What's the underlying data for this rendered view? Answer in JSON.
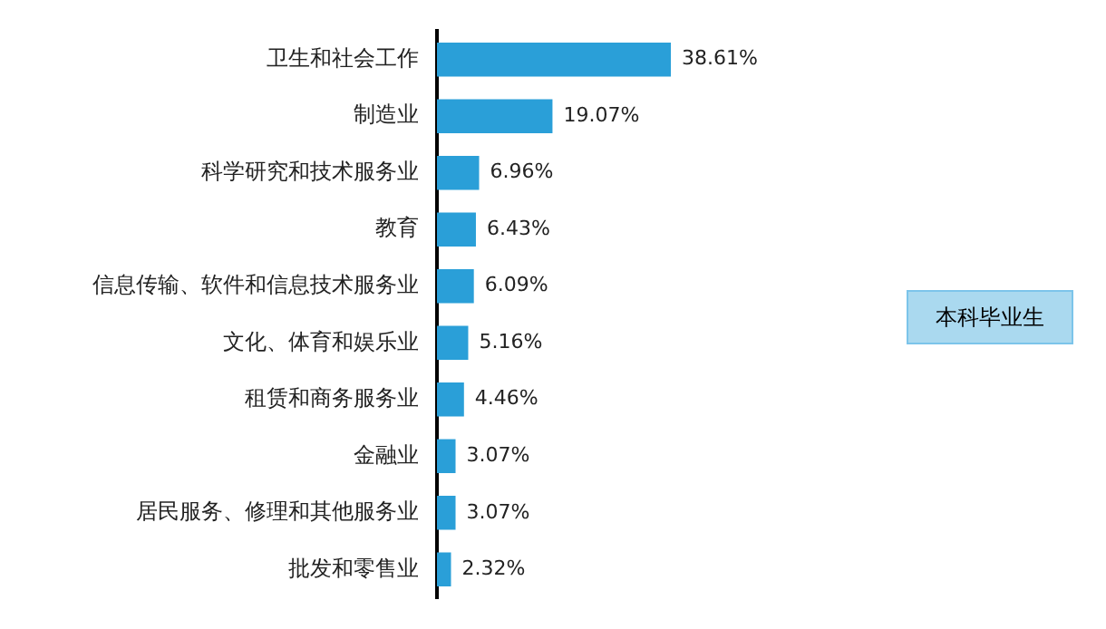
{
  "chart_data": {
    "type": "bar",
    "orientation": "horizontal",
    "legend": "right",
    "categories": [
      "卫生和社会工作",
      "制造业",
      "科学研究和技术服务业",
      "教育",
      "信息传输、软件和信息技术服务业",
      "文化、体育和娱乐业",
      "租赁和商务服务业",
      "金融业",
      "居民服务、修理和其他服务业",
      "批发和零售业"
    ],
    "series": [
      {
        "name": "本科毕业生",
        "color": "#2a9fd8",
        "values": [
          38.61,
          19.07,
          6.96,
          6.43,
          6.09,
          5.16,
          4.46,
          3.07,
          3.07,
          2.32
        ],
        "value_labels": [
          "38.61%",
          "19.07%",
          "6.96%",
          "6.43%",
          "6.09%",
          "5.16%",
          "4.46%",
          "3.07%",
          "3.07%",
          "2.32%"
        ]
      }
    ]
  }
}
